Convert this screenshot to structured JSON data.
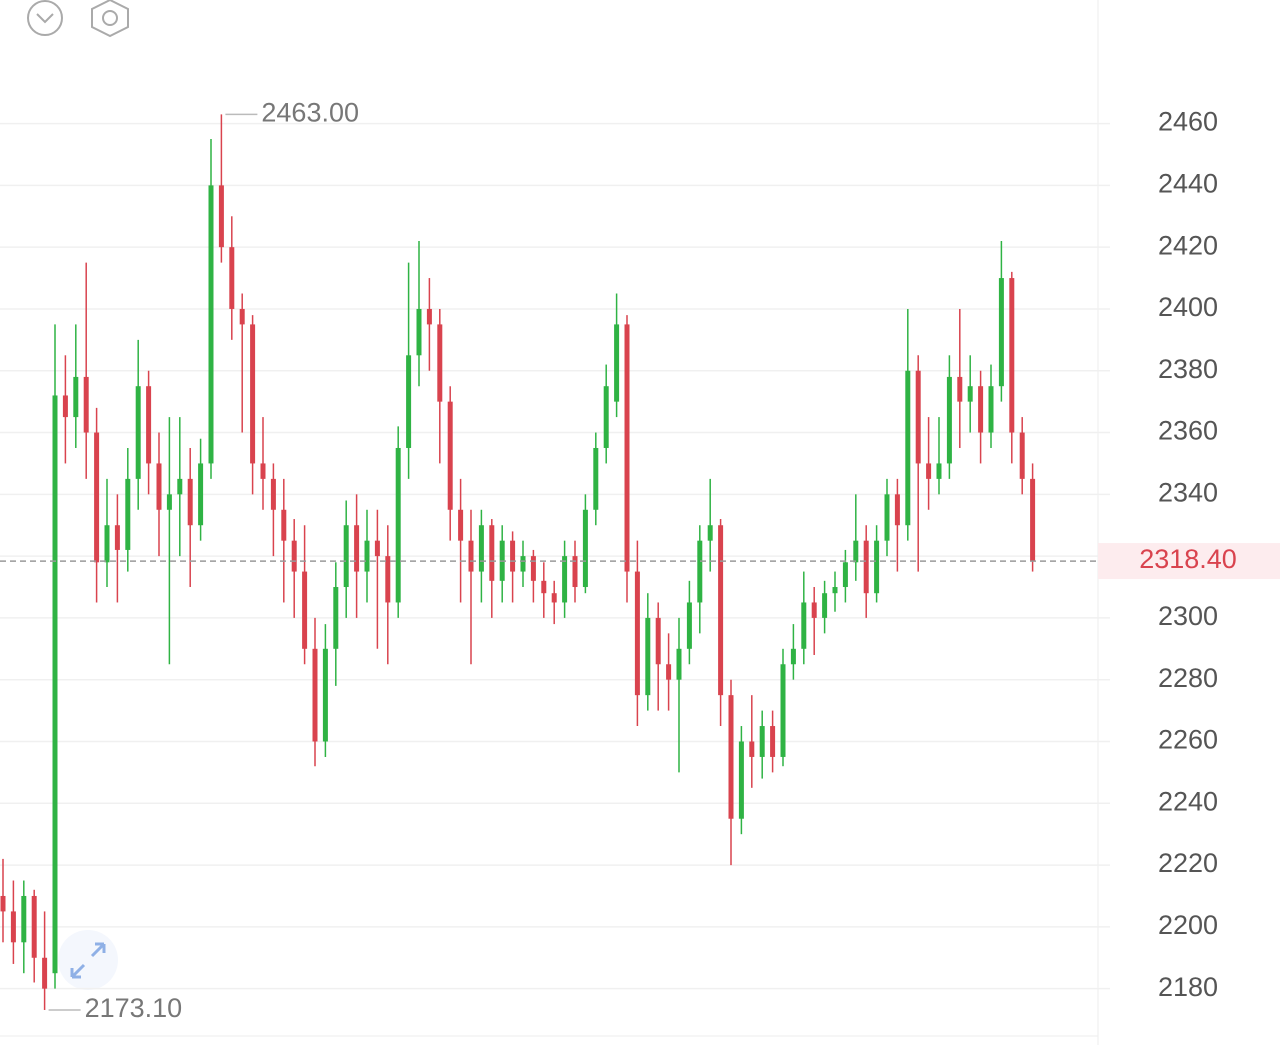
{
  "chart_data": {
    "type": "candlestick",
    "open": [
      2210,
      2205,
      2195,
      2210,
      2190,
      2185,
      2372,
      2365,
      2378,
      2360,
      2318,
      2330,
      2322,
      2345,
      2375,
      2350,
      2335,
      2340,
      2345,
      2330,
      2350,
      2440,
      2420,
      2400,
      2395,
      2350,
      2345,
      2335,
      2325,
      2315,
      2290,
      2260,
      2290,
      2310,
      2330,
      2315,
      2325,
      2320,
      2305,
      2355,
      2385,
      2400,
      2395,
      2370,
      2335,
      2325,
      2315,
      2330,
      2312,
      2325,
      2315,
      2320,
      2312,
      2308,
      2305,
      2320,
      2310,
      2335,
      2355,
      2370,
      2395,
      2315,
      2275,
      2300,
      2285,
      2280,
      2290,
      2305,
      2325,
      2330,
      2275,
      2235,
      2260,
      2255,
      2265,
      2255,
      2285,
      2290,
      2305,
      2300,
      2308,
      2310,
      2318,
      2325,
      2308,
      2325,
      2340,
      2330,
      2380,
      2350,
      2345,
      2350,
      2378,
      2370,
      2375,
      2360,
      2375,
      2410,
      2360,
      2345
    ],
    "high": [
      2222,
      2215,
      2215,
      2212,
      2205,
      2395,
      2385,
      2395,
      2415,
      2368,
      2345,
      2340,
      2355,
      2390,
      2380,
      2360,
      2365,
      2365,
      2355,
      2358,
      2455,
      2463,
      2430,
      2405,
      2398,
      2365,
      2350,
      2345,
      2332,
      2330,
      2300,
      2298,
      2318,
      2338,
      2340,
      2335,
      2335,
      2330,
      2362,
      2415,
      2422,
      2410,
      2400,
      2375,
      2345,
      2335,
      2335,
      2332,
      2330,
      2328,
      2325,
      2322,
      2318,
      2312,
      2325,
      2325,
      2340,
      2360,
      2382,
      2405,
      2398,
      2325,
      2308,
      2305,
      2295,
      2300,
      2312,
      2330,
      2345,
      2332,
      2280,
      2265,
      2275,
      2270,
      2270,
      2290,
      2298,
      2315,
      2310,
      2312,
      2315,
      2322,
      2340,
      2330,
      2330,
      2345,
      2345,
      2400,
      2385,
      2365,
      2365,
      2385,
      2400,
      2385,
      2380,
      2382,
      2422,
      2412,
      2365,
      2350
    ],
    "low": [
      2195,
      2188,
      2185,
      2182,
      2173.1,
      2180,
      2350,
      2355,
      2345,
      2305,
      2310,
      2305,
      2315,
      2335,
      2340,
      2320,
      2285,
      2320,
      2310,
      2325,
      2345,
      2415,
      2390,
      2360,
      2340,
      2335,
      2320,
      2305,
      2300,
      2285,
      2252,
      2255,
      2278,
      2300,
      2300,
      2305,
      2290,
      2285,
      2300,
      2345,
      2375,
      2380,
      2350,
      2325,
      2305,
      2285,
      2305,
      2300,
      2305,
      2305,
      2310,
      2305,
      2300,
      2298,
      2300,
      2305,
      2308,
      2330,
      2350,
      2365,
      2305,
      2265,
      2270,
      2270,
      2270,
      2250,
      2285,
      2295,
      2315,
      2265,
      2220,
      2230,
      2245,
      2248,
      2250,
      2252,
      2280,
      2285,
      2288,
      2295,
      2302,
      2305,
      2312,
      2300,
      2305,
      2320,
      2315,
      2325,
      2315,
      2335,
      2340,
      2345,
      2355,
      2360,
      2350,
      2355,
      2370,
      2350,
      2340,
      2315
    ],
    "close": [
      2205,
      2195,
      2210,
      2190,
      2180,
      2372,
      2365,
      2378,
      2360,
      2318,
      2330,
      2322,
      2345,
      2375,
      2350,
      2335,
      2340,
      2345,
      2330,
      2350,
      2440,
      2420,
      2400,
      2395,
      2350,
      2345,
      2335,
      2325,
      2315,
      2290,
      2260,
      2290,
      2310,
      2330,
      2315,
      2325,
      2320,
      2305,
      2355,
      2385,
      2400,
      2395,
      2370,
      2335,
      2325,
      2315,
      2330,
      2312,
      2325,
      2315,
      2320,
      2312,
      2308,
      2305,
      2320,
      2310,
      2335,
      2355,
      2375,
      2395,
      2315,
      2275,
      2300,
      2285,
      2280,
      2290,
      2305,
      2325,
      2330,
      2275,
      2235,
      2260,
      2255,
      2265,
      2255,
      2285,
      2290,
      2305,
      2300,
      2308,
      2310,
      2318,
      2325,
      2308,
      2325,
      2340,
      2330,
      2380,
      2350,
      2345,
      2350,
      2378,
      2370,
      2375,
      2360,
      2375,
      2410,
      2360,
      2345,
      2318.4
    ],
    "up_color": "#2fb344",
    "down_color": "#d9434e",
    "ylim": [
      2165,
      2500
    ],
    "yticks": [
      2180,
      2200,
      2220,
      2240,
      2260,
      2280,
      2300,
      2320,
      2340,
      2360,
      2380,
      2400,
      2420,
      2440,
      2460
    ],
    "grid": true,
    "last_price": {
      "value": 2318.4,
      "label": "2318.40"
    },
    "annotations": [
      {
        "value": 2463,
        "label": "2463.00"
      },
      {
        "value": 2173.1,
        "label": "2173.10"
      }
    ]
  }
}
